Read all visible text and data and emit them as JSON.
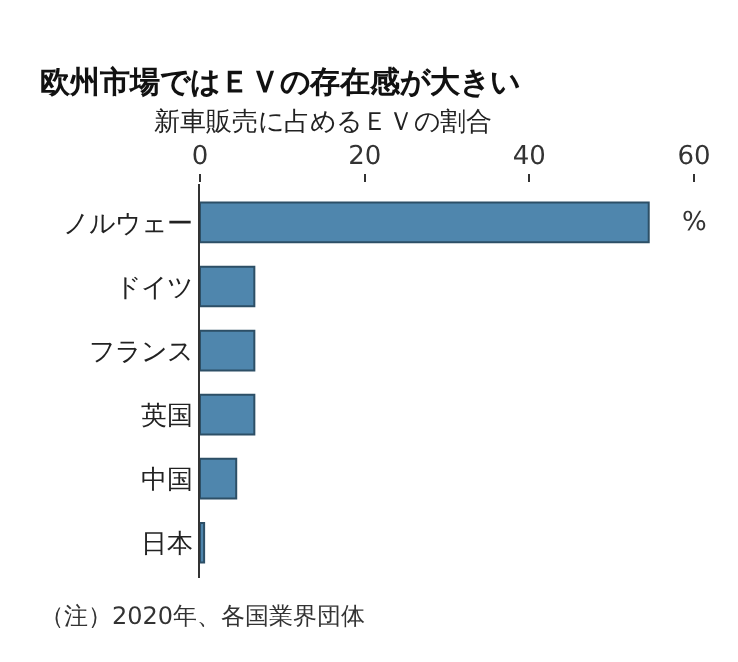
{
  "chart_data": {
    "type": "bar",
    "orientation": "horizontal",
    "title": "欧州市場ではＥＶの存在感が大きい",
    "subtitle": "新車販売に占めるＥＶの割合",
    "xlabel": "%",
    "categories": [
      "ノルウェー",
      "ドイツ",
      "フランス",
      "英国",
      "中国",
      "日本"
    ],
    "values": [
      54.5,
      6.6,
      6.6,
      6.6,
      4.4,
      0.5
    ],
    "color": "#4f86ad",
    "xlim": [
      0,
      60
    ],
    "xticks": [
      0,
      20,
      40,
      60
    ],
    "annotations": [
      "（注）2020年、各国業界団体"
    ]
  }
}
